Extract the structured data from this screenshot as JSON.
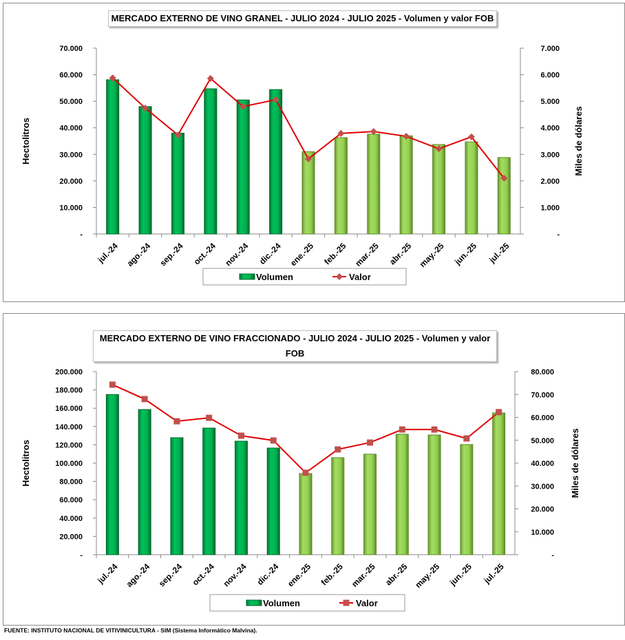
{
  "chart_data": [
    {
      "type": "bar+line",
      "title": "MERCADO EXTERNO DE VINO GRANEL - JULIO 2024 - JULIO 2025 - Volumen y valor FOB",
      "ylabel": "Hectolitros",
      "y2label": "Miles de dólares",
      "ylim": [
        0,
        70000
      ],
      "y2lim": [
        0,
        7000
      ],
      "yticks": [
        "-",
        "10.000",
        "20.000",
        "30.000",
        "40.000",
        "50.000",
        "60.000",
        "70.000"
      ],
      "y2ticks": [
        "-",
        "1.000",
        "2.000",
        "3.000",
        "4.000",
        "5.000",
        "6.000",
        "7.000"
      ],
      "categories": [
        "jul.-24",
        "ago.-24",
        "sep.-24",
        "oct.-24",
        "nov.-24",
        "dic.-24",
        "ene.-25",
        "feb.-25",
        "mar.-25",
        "abr.-25",
        "may.-25",
        "jun.-25",
        "jul.-25"
      ],
      "series": [
        {
          "name": "Volumen",
          "type": "bar",
          "values": [
            58100,
            48000,
            38000,
            54700,
            50500,
            54400,
            31000,
            36300,
            37600,
            37000,
            33700,
            34700,
            28800
          ]
        },
        {
          "name": "Valor",
          "type": "line",
          "marker": "diamond",
          "values": [
            5880,
            4740,
            3730,
            5860,
            4800,
            5060,
            2830,
            3790,
            3860,
            3680,
            3210,
            3660,
            2100
          ]
        }
      ],
      "legend": "bottom"
    },
    {
      "type": "bar+line",
      "title": "MERCADO EXTERNO DE VINO FRACCIONADO - JULIO 2024 - JULIO 2025 - Volumen y valor FOB",
      "ylabel": "Hectolitros",
      "y2label": "Miles de dólares",
      "ylim": [
        0,
        200000
      ],
      "y2lim": [
        0,
        80000
      ],
      "yticks": [
        "-",
        "20.000",
        "40.000",
        "60.000",
        "80.000",
        "100.000",
        "120.000",
        "140.000",
        "160.000",
        "180.000",
        "200.000"
      ],
      "y2ticks": [
        "-",
        "10.000",
        "20.000",
        "30.000",
        "40.000",
        "50.000",
        "60.000",
        "70.000",
        "80.000"
      ],
      "categories": [
        "jul.-24",
        "ago.-24",
        "sep.-24",
        "oct.-24",
        "nov.-24",
        "dic.-24",
        "ene.-25",
        "feb.-25",
        "mar.-25",
        "abr.-25",
        "may.-25",
        "jun.-25",
        "jul.-25"
      ],
      "series": [
        {
          "name": "Volumen",
          "type": "bar",
          "values": [
            175000,
            158600,
            127800,
            138300,
            124000,
            116500,
            88700,
            106000,
            109800,
            131600,
            130800,
            120300,
            154900
          ]
        },
        {
          "name": "Valor",
          "type": "line",
          "marker": "square",
          "values": [
            74300,
            68000,
            58300,
            59800,
            52000,
            49900,
            35800,
            46000,
            49000,
            54700,
            54700,
            50800,
            62300
          ]
        }
      ],
      "legend": "bottom"
    }
  ],
  "colors": {
    "bar_2024": "#00b050",
    "bar_2025": "#92d050",
    "line": "#e00000",
    "marker": "#c0504d"
  },
  "footer": "FUENTE: INSTITUTO NACIONAL DE VITIVINICULTURA - SIM (Sistema Informático Malvina)."
}
